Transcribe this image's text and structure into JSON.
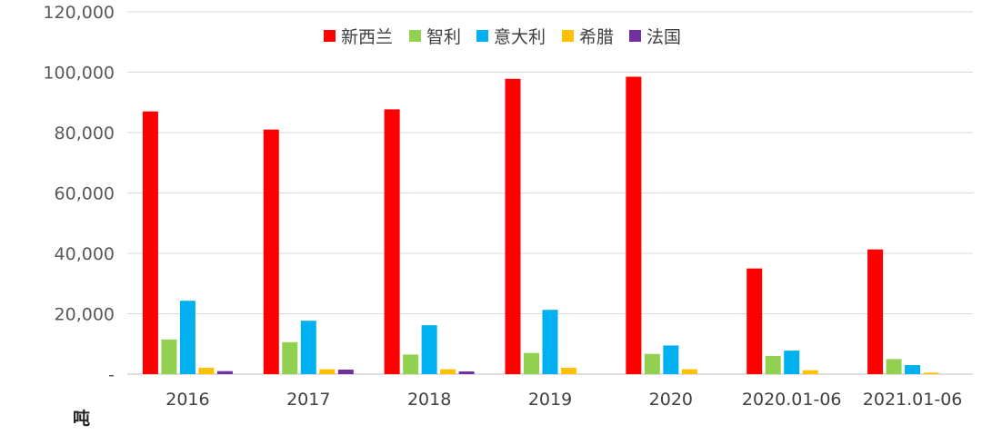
{
  "chart_data": {
    "type": "bar",
    "unit_label": "吨",
    "categories": [
      "2016",
      "2017",
      "2018",
      "2019",
      "2020",
      "2020.01-06",
      "2021.01-06"
    ],
    "series": [
      {
        "name": "新西兰",
        "color": "#ff0000",
        "values": [
          87000,
          81000,
          87700,
          97800,
          98500,
          35000,
          41300
        ]
      },
      {
        "name": "智利",
        "color": "#92d050",
        "values": [
          11500,
          10600,
          6500,
          7000,
          6700,
          6000,
          5000
        ]
      },
      {
        "name": "意大利",
        "color": "#00b0f0",
        "values": [
          24300,
          17700,
          16200,
          21300,
          9500,
          7800,
          3000
        ]
      },
      {
        "name": "希腊",
        "color": "#ffc000",
        "values": [
          2100,
          1600,
          1600,
          2100,
          1600,
          1300,
          500
        ]
      },
      {
        "name": "法国",
        "color": "#7030a0",
        "values": [
          1000,
          1500,
          900,
          0,
          0,
          0,
          0
        ]
      }
    ],
    "ylim": [
      0,
      120000
    ],
    "yticks": [
      "-",
      "20,000",
      "40,000",
      "60,000",
      "80,000",
      "100,000",
      "120,000"
    ],
    "grid": true,
    "legend_position": "top"
  }
}
